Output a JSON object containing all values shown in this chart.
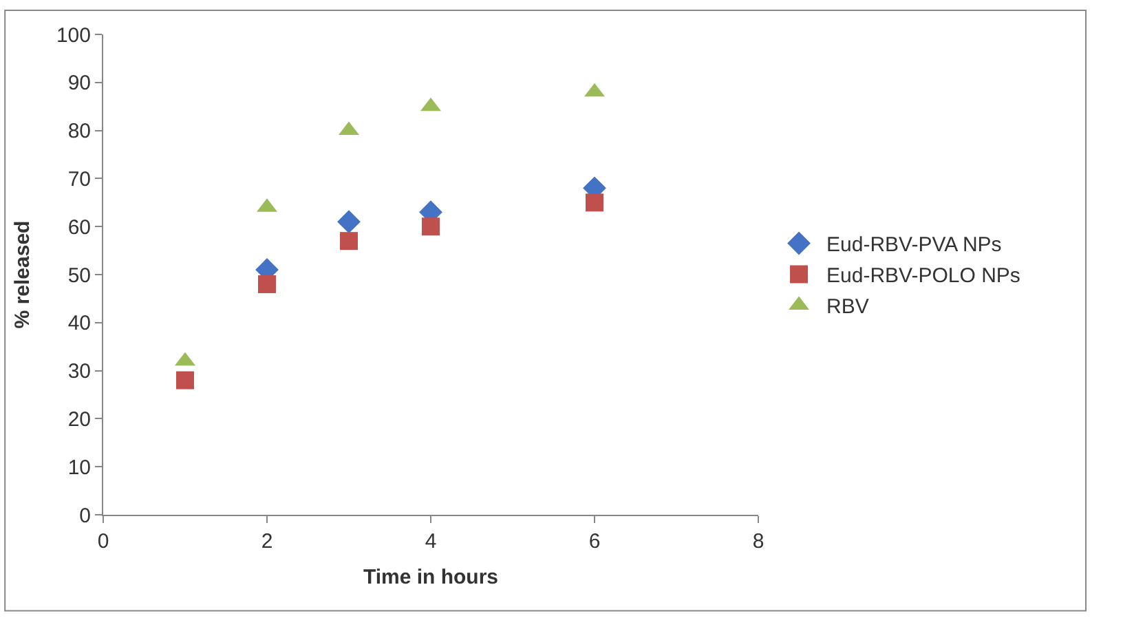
{
  "chart_data": {
    "type": "scatter",
    "xlabel": "Time in hours",
    "ylabel": "% released",
    "x": [
      1,
      2,
      3,
      4,
      6
    ],
    "series": [
      {
        "name": "Eud-RBV-PVA NPs",
        "color": "#4472c4",
        "marker": "diamond",
        "values": [
          null,
          51,
          61,
          63,
          68
        ]
      },
      {
        "name": "Eud-RBV-POLO NPs",
        "color": "#c0504d",
        "marker": "square",
        "values": [
          28,
          48,
          57,
          60,
          65
        ]
      },
      {
        "name": "RBV",
        "color": "#9bbb59",
        "marker": "triangle",
        "values": [
          32,
          64,
          80,
          85,
          88
        ]
      }
    ],
    "xlim": [
      0,
      8
    ],
    "xticks": [
      0,
      2,
      4,
      6,
      8
    ],
    "ylim": [
      0,
      100
    ],
    "yticks": [
      0,
      10,
      20,
      30,
      40,
      50,
      60,
      70,
      80,
      90,
      100
    ],
    "legend": "right"
  }
}
